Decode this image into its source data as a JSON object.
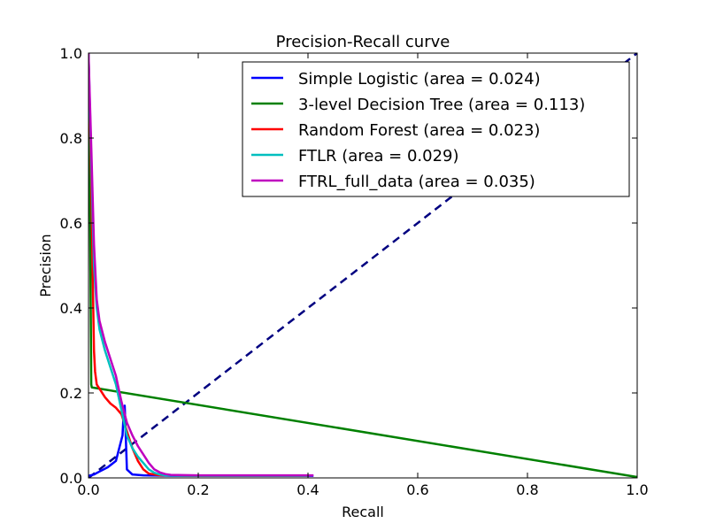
{
  "chart_data": {
    "type": "line",
    "title": "Precision-Recall curve",
    "xlabel": "Recall",
    "ylabel": "Precision",
    "xlim": [
      0.0,
      1.0
    ],
    "ylim": [
      0.0,
      1.0
    ],
    "xticks": [
      "0.0",
      "0.2",
      "0.4",
      "0.6",
      "0.8",
      "1.0"
    ],
    "yticks": [
      "0.0",
      "0.2",
      "0.4",
      "0.6",
      "0.8",
      "1.0"
    ],
    "grid": false,
    "legend_position": "top-right",
    "diagonal": {
      "x": [
        0.0,
        1.0
      ],
      "y": [
        0.0,
        1.0
      ],
      "color": "#000080",
      "style": "dashed"
    },
    "series": [
      {
        "name": "Simple Logistic (area = 0.024)",
        "color": "#0000ff",
        "x": [
          0.0,
          0.01,
          0.02,
          0.035,
          0.05,
          0.058,
          0.062,
          0.064,
          0.066,
          0.07,
          0.08,
          0.1,
          0.15,
          0.2,
          0.3,
          0.41
        ],
        "y": [
          0.005,
          0.008,
          0.015,
          0.025,
          0.04,
          0.08,
          0.1,
          0.15,
          0.17,
          0.02,
          0.008,
          0.006,
          0.005,
          0.005,
          0.005,
          0.005
        ]
      },
      {
        "name": "3-level Decision Tree (area = 0.113)",
        "color": "#008000",
        "x": [
          0.0,
          0.003,
          0.005,
          0.006,
          1.0
        ],
        "y": [
          1.0,
          0.6,
          0.22,
          0.213,
          0.002
        ]
      },
      {
        "name": "Random Forest (area = 0.023)",
        "color": "#ff0000",
        "x": [
          0.0,
          0.005,
          0.008,
          0.01,
          0.012,
          0.015,
          0.02,
          0.03,
          0.04,
          0.05,
          0.06,
          0.07,
          0.08,
          0.09,
          0.1,
          0.11,
          0.12,
          0.13,
          0.2,
          0.3,
          0.4
        ],
        "y": [
          1.0,
          0.7,
          0.45,
          0.3,
          0.25,
          0.22,
          0.21,
          0.19,
          0.175,
          0.165,
          0.15,
          0.11,
          0.07,
          0.04,
          0.02,
          0.01,
          0.008,
          0.006,
          0.005,
          0.005,
          0.005
        ]
      },
      {
        "name": "FTLR (area = 0.029)",
        "color": "#00bfbf",
        "x": [
          0.0,
          0.005,
          0.01,
          0.015,
          0.02,
          0.03,
          0.04,
          0.05,
          0.06,
          0.07,
          0.08,
          0.09,
          0.1,
          0.11,
          0.12,
          0.13,
          0.14,
          0.2,
          0.3,
          0.4
        ],
        "y": [
          1.0,
          0.75,
          0.5,
          0.4,
          0.35,
          0.3,
          0.26,
          0.22,
          0.16,
          0.1,
          0.07,
          0.05,
          0.035,
          0.02,
          0.012,
          0.008,
          0.006,
          0.005,
          0.005,
          0.005
        ]
      },
      {
        "name": "FTRL_full_data (area = 0.035)",
        "color": "#bf00bf",
        "x": [
          0.0,
          0.005,
          0.01,
          0.015,
          0.02,
          0.03,
          0.04,
          0.05,
          0.06,
          0.07,
          0.08,
          0.09,
          0.1,
          0.11,
          0.12,
          0.13,
          0.14,
          0.15,
          0.2,
          0.3,
          0.41
        ],
        "y": [
          1.0,
          0.78,
          0.55,
          0.42,
          0.37,
          0.32,
          0.28,
          0.24,
          0.18,
          0.13,
          0.1,
          0.075,
          0.055,
          0.035,
          0.02,
          0.013,
          0.009,
          0.007,
          0.006,
          0.006,
          0.006
        ]
      }
    ]
  }
}
